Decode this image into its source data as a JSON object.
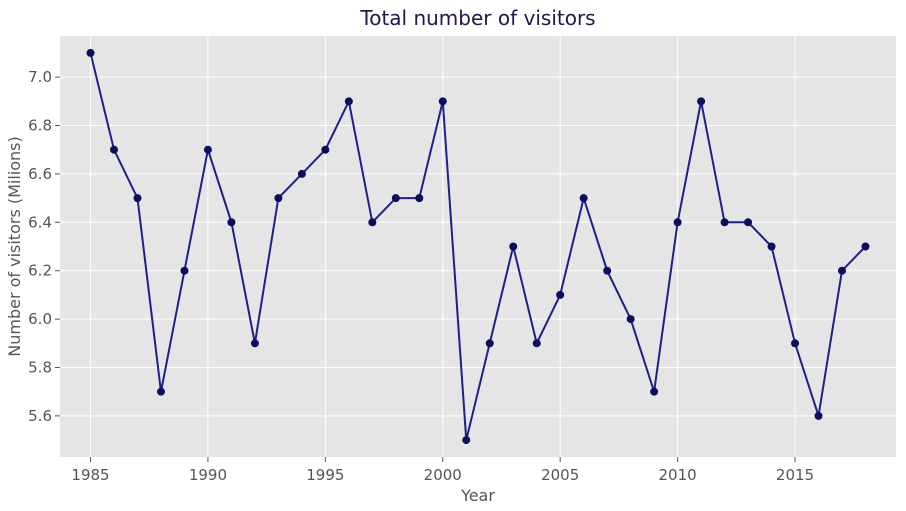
{
  "chart_data": {
    "type": "line",
    "title": "Total number of visitors",
    "xlabel": "Year",
    "ylabel": "Number of visitors (Milions)",
    "xlim": [
      1983.7,
      2019.3
    ],
    "ylim": [
      5.43,
      7.17
    ],
    "x_ticks": [
      1985,
      1990,
      1995,
      2000,
      2005,
      2010,
      2015
    ],
    "y_ticks": [
      5.6,
      5.8,
      6.0,
      6.2,
      6.4,
      6.6,
      6.8,
      7.0
    ],
    "y_tick_labels": [
      "5.6",
      "5.8",
      "6.0",
      "6.2",
      "6.4",
      "6.6",
      "6.8",
      "7.0"
    ],
    "grid": true,
    "legend": "none",
    "colors": {
      "background": "#e5e5e5",
      "grid": "#ffffff",
      "line": "#1f1f8a",
      "marker": "#0d0d5e",
      "title": "#1a1a4e",
      "axis_text": "#555555"
    },
    "series": [
      {
        "x": [
          1985,
          1986,
          1987,
          1988,
          1989,
          1990,
          1991,
          1992,
          1993,
          1994,
          1995,
          1996,
          1997,
          1998,
          1999,
          2000,
          2001,
          2002,
          2003,
          2004,
          2005,
          2006,
          2007,
          2008,
          2009,
          2010,
          2011,
          2012,
          2013,
          2014,
          2015,
          2016,
          2017,
          2018
        ],
        "values": [
          7.1,
          6.7,
          6.5,
          5.7,
          6.2,
          6.7,
          6.4,
          5.9,
          6.5,
          6.6,
          6.7,
          6.9,
          6.4,
          6.5,
          6.5,
          6.9,
          5.5,
          5.9,
          6.3,
          5.9,
          6.1,
          6.5,
          6.2,
          6.0,
          5.7,
          6.4,
          6.9,
          6.4,
          6.4,
          6.3,
          5.9,
          5.6,
          6.2,
          6.3
        ]
      }
    ]
  }
}
